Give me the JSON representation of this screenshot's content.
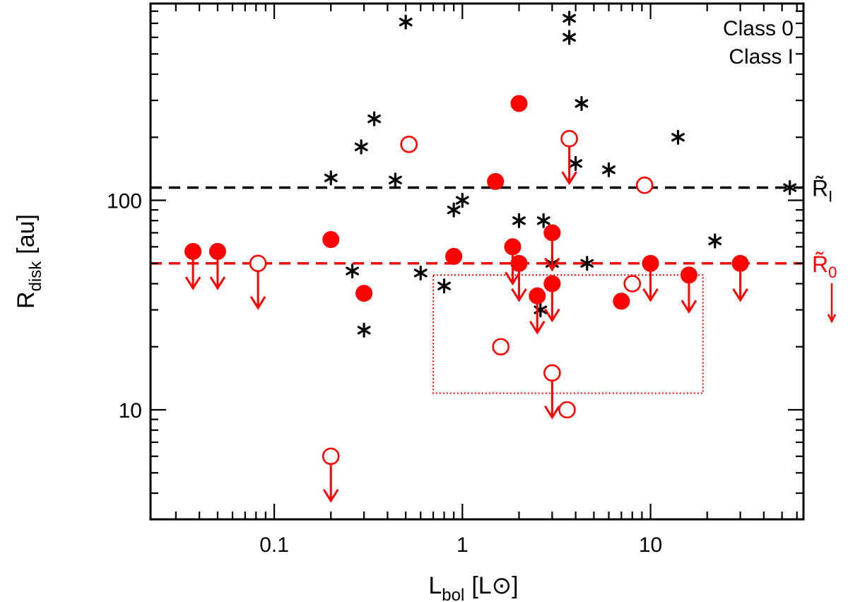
{
  "chart_data": {
    "type": "scatter",
    "x_scale": "log",
    "y_scale": "log",
    "xlim": [
      0.022,
      65
    ],
    "ylim": [
      3.0,
      870
    ],
    "xlabel": "L_bol [L_⊙]",
    "xlabel_main": "L",
    "xlabel_sub": "bol",
    "xlabel_units": "[L⊙]",
    "ylabel_main": "R",
    "ylabel_sub": "disk",
    "ylabel_units": "[au]",
    "x_tick_labels": [
      {
        "value": 0.1,
        "label": "0.1"
      },
      {
        "value": 1,
        "label": "1"
      },
      {
        "value": 10,
        "label": "10"
      }
    ],
    "y_tick_labels": [
      {
        "value": 10,
        "label": "10"
      },
      {
        "value": 100,
        "label": "100"
      }
    ],
    "colors": {
      "class0": "#ff0000",
      "class1": "#000000"
    },
    "legend": {
      "placement": "top-right",
      "entries": [
        {
          "label": "Class 0",
          "color": "#ff0000"
        },
        {
          "label": "Class I",
          "color": "#000000"
        }
      ]
    },
    "reference_lines": [
      {
        "name": "R~_I",
        "value": 115,
        "color": "#000000",
        "style": "dashed",
        "label_main": "R̃",
        "label_sub": "I"
      },
      {
        "name": "R~_0",
        "value": 50,
        "color": "#ff0000",
        "style": "dashed",
        "label_main": "R̃",
        "label_sub": "0",
        "upper_limit_arrow": true
      }
    ],
    "box_region": {
      "x": [
        0.7,
        19
      ],
      "y": [
        12,
        44
      ],
      "color": "#ff0000",
      "style": "dotted"
    },
    "series": [
      {
        "name": "Class I",
        "marker": "asterisk",
        "color": "#000000",
        "points": [
          {
            "x": 0.5,
            "y": 710
          },
          {
            "x": 3.7,
            "y": 740
          },
          {
            "x": 3.7,
            "y": 600
          },
          {
            "x": 0.34,
            "y": 245
          },
          {
            "x": 4.3,
            "y": 290
          },
          {
            "x": 0.29,
            "y": 180
          },
          {
            "x": 14,
            "y": 200
          },
          {
            "x": 4.0,
            "y": 150
          },
          {
            "x": 6.0,
            "y": 140
          },
          {
            "x": 0.2,
            "y": 128
          },
          {
            "x": 0.44,
            "y": 125
          },
          {
            "x": 55,
            "y": 115
          },
          {
            "x": 1.0,
            "y": 100
          },
          {
            "x": 0.9,
            "y": 90
          },
          {
            "x": 2.0,
            "y": 80
          },
          {
            "x": 2.7,
            "y": 80
          },
          {
            "x": 22,
            "y": 64
          },
          {
            "x": 3.0,
            "y": 50
          },
          {
            "x": 4.6,
            "y": 50
          },
          {
            "x": 0.26,
            "y": 46
          },
          {
            "x": 0.6,
            "y": 45
          },
          {
            "x": 0.8,
            "y": 39
          },
          {
            "x": 2.6,
            "y": 30
          },
          {
            "x": 0.3,
            "y": 24
          }
        ]
      },
      {
        "name": "Class 0 (filled)",
        "marker": "filled-circle",
        "color": "#ff0000",
        "points": [
          {
            "x": 2.0,
            "y": 290,
            "upper_limit": false
          },
          {
            "x": 1.5,
            "y": 123,
            "upper_limit": false
          },
          {
            "x": 3.0,
            "y": 70,
            "upper_limit": true
          },
          {
            "x": 0.2,
            "y": 65,
            "upper_limit": false
          },
          {
            "x": 1.85,
            "y": 60,
            "upper_limit": true
          },
          {
            "x": 0.037,
            "y": 57,
            "upper_limit": true
          },
          {
            "x": 0.05,
            "y": 57,
            "upper_limit": true
          },
          {
            "x": 0.9,
            "y": 54,
            "upper_limit": false
          },
          {
            "x": 2.0,
            "y": 50,
            "upper_limit": true
          },
          {
            "x": 10,
            "y": 50,
            "upper_limit": true
          },
          {
            "x": 30,
            "y": 50,
            "upper_limit": true
          },
          {
            "x": 16,
            "y": 44,
            "upper_limit": true
          },
          {
            "x": 3.0,
            "y": 40,
            "upper_limit": true
          },
          {
            "x": 0.3,
            "y": 36,
            "upper_limit": false
          },
          {
            "x": 2.5,
            "y": 35,
            "upper_limit": true
          },
          {
            "x": 7.0,
            "y": 33,
            "upper_limit": false
          }
        ]
      },
      {
        "name": "Class 0 (open)",
        "marker": "open-circle",
        "color": "#ff0000",
        "points": [
          {
            "x": 0.52,
            "y": 185,
            "upper_limit": false
          },
          {
            "x": 3.7,
            "y": 197,
            "upper_limit": true
          },
          {
            "x": 9.3,
            "y": 118,
            "upper_limit": false
          },
          {
            "x": 0.082,
            "y": 50,
            "upper_limit": true
          },
          {
            "x": 8.0,
            "y": 40,
            "upper_limit": false
          },
          {
            "x": 1.6,
            "y": 20,
            "upper_limit": false
          },
          {
            "x": 3.0,
            "y": 15,
            "upper_limit": true
          },
          {
            "x": 3.6,
            "y": 10,
            "upper_limit": false
          },
          {
            "x": 0.2,
            "y": 6,
            "upper_limit": true
          }
        ]
      }
    ]
  }
}
